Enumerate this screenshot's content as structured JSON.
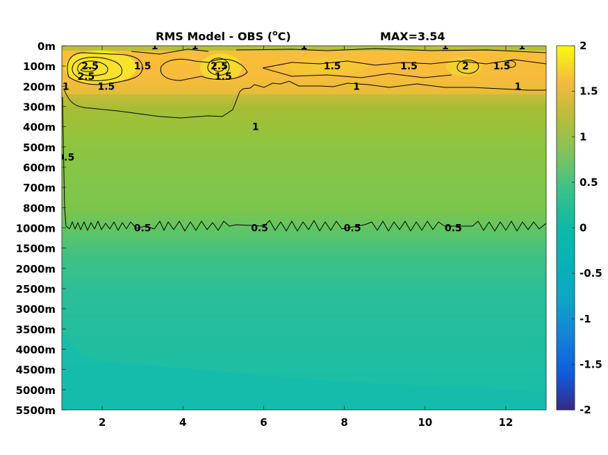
{
  "title": {
    "main_prefix": "RMS Model - OBS (",
    "superscript": "o",
    "main_suffix": "C)",
    "max_label": "MAX=3.54"
  },
  "chart_data": {
    "type": "heatmap",
    "x_ticks": [
      "2",
      "4",
      "6",
      "8",
      "10",
      "12"
    ],
    "x_tick_values": [
      2,
      4,
      6,
      8,
      10,
      12
    ],
    "xlim": [
      1,
      13
    ],
    "y_tick_labels": [
      "0m",
      "100m",
      "200m",
      "300m",
      "400m",
      "500m",
      "600m",
      "700m",
      "800m",
      "1000m",
      "1500m",
      "2000m",
      "2500m",
      "3000m",
      "3500m",
      "4000m",
      "4500m",
      "5000m",
      "5500m"
    ],
    "colorbar_ticks": [
      "2",
      "1.5",
      "1",
      "0.5",
      "0",
      "-0.5",
      "-1",
      "-1.5",
      "-2"
    ],
    "clim": [
      -2,
      2
    ],
    "max_value": 3.54,
    "contour_levels": [
      0.5,
      1,
      1.5,
      2,
      2.5
    ],
    "contour_labels": [
      {
        "text": "1",
        "x": 3.3,
        "depth": "0m"
      },
      {
        "text": "1",
        "x": 4.3,
        "depth": "0m"
      },
      {
        "text": "1",
        "x": 7.0,
        "depth": "0m"
      },
      {
        "text": "1",
        "x": 10.5,
        "depth": "0m"
      },
      {
        "text": "1",
        "x": 12.4,
        "depth": "0m"
      },
      {
        "text": "1.5",
        "x": 11.9,
        "depth": "100m"
      },
      {
        "text": "2.5",
        "x": 1.7,
        "depth": "100m"
      },
      {
        "text": "2.5",
        "x": 1.6,
        "depth": "150m"
      },
      {
        "text": "1.5",
        "x": 3.0,
        "depth": "100m"
      },
      {
        "text": "2.5",
        "x": 4.9,
        "depth": "100m"
      },
      {
        "text": "1.5",
        "x": 5.0,
        "depth": "150m"
      },
      {
        "text": "1.5",
        "x": 7.7,
        "depth": "100m"
      },
      {
        "text": "1.5",
        "x": 9.6,
        "depth": "100m"
      },
      {
        "text": "2",
        "x": 11.0,
        "depth": "100m"
      },
      {
        "text": "1.5",
        "x": 2.1,
        "depth": "200m"
      },
      {
        "text": "1",
        "x": 1.1,
        "depth": "200m"
      },
      {
        "text": "1",
        "x": 8.3,
        "depth": "200m"
      },
      {
        "text": "1",
        "x": 12.3,
        "depth": "200m"
      },
      {
        "text": "1",
        "x": 5.8,
        "depth": "400m"
      },
      {
        "text": "0.5",
        "x": 1.1,
        "depth": "550m"
      },
      {
        "text": "0.5",
        "x": 3.0,
        "depth": "1000m"
      },
      {
        "text": "0.5",
        "x": 5.9,
        "depth": "1000m"
      },
      {
        "text": "0.5",
        "x": 8.2,
        "depth": "1000m"
      },
      {
        "text": "0.5",
        "x": 10.7,
        "depth": "1000m"
      }
    ],
    "colormap": "parula",
    "grid": false
  }
}
